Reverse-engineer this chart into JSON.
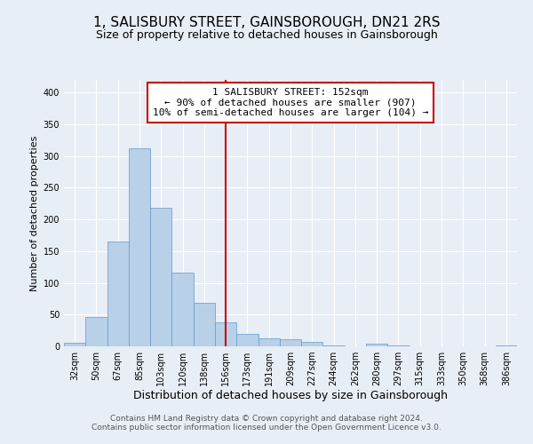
{
  "title": "1, SALISBURY STREET, GAINSBOROUGH, DN21 2RS",
  "subtitle": "Size of property relative to detached houses in Gainsborough",
  "xlabel": "Distribution of detached houses by size in Gainsborough",
  "ylabel": "Number of detached properties",
  "bar_labels": [
    "32sqm",
    "50sqm",
    "67sqm",
    "85sqm",
    "103sqm",
    "120sqm",
    "138sqm",
    "156sqm",
    "173sqm",
    "191sqm",
    "209sqm",
    "227sqm",
    "244sqm",
    "262sqm",
    "280sqm",
    "297sqm",
    "315sqm",
    "333sqm",
    "350sqm",
    "368sqm",
    "386sqm"
  ],
  "bar_heights": [
    5,
    46,
    165,
    312,
    218,
    116,
    68,
    38,
    19,
    12,
    11,
    7,
    2,
    0,
    4,
    2,
    0,
    0,
    0,
    0,
    2
  ],
  "bar_color": "#b8d0e8",
  "bar_edge_color": "#6699cc",
  "vline_index": 7,
  "vline_color": "#cc0000",
  "annotation_text": "1 SALISBURY STREET: 152sqm\n← 90% of detached houses are smaller (907)\n10% of semi-detached houses are larger (104) →",
  "annotation_box_color": "#cc0000",
  "ylim": [
    0,
    420
  ],
  "yticks": [
    0,
    50,
    100,
    150,
    200,
    250,
    300,
    350,
    400
  ],
  "bg_color": "#e8eef6",
  "footer_line1": "Contains HM Land Registry data © Crown copyright and database right 2024.",
  "footer_line2": "Contains public sector information licensed under the Open Government Licence v3.0.",
  "title_fontsize": 11,
  "subtitle_fontsize": 9,
  "xlabel_fontsize": 9,
  "ylabel_fontsize": 8,
  "tick_fontsize": 7,
  "annotation_fontsize": 8,
  "footer_fontsize": 6.5
}
